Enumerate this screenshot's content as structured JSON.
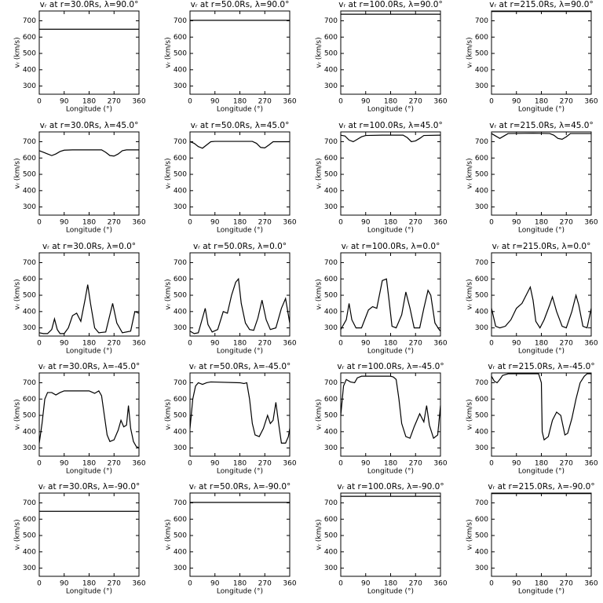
{
  "chart_data": [
    {
      "type": "line",
      "title": "vᵣ at r=30.0Rs, λ=90.0°",
      "xlabel": "Longitude (°)",
      "ylabel": "vᵣ (km/s)",
      "x": [
        0,
        360
      ],
      "values": [
        648,
        648
      ],
      "xlim": [
        0,
        360
      ],
      "ylim": [
        250,
        760
      ],
      "xticks": [
        0,
        90,
        180,
        270,
        360
      ],
      "yticks": [
        300,
        400,
        500,
        600,
        700
      ],
      "color": "#000000"
    },
    {
      "type": "line",
      "title": "vᵣ at r=50.0Rs, λ=90.0°",
      "xlabel": "Longitude (°)",
      "ylabel": "vᵣ (km/s)",
      "x": [
        0,
        360
      ],
      "values": [
        703,
        703
      ],
      "xlim": [
        0,
        360
      ],
      "ylim": [
        250,
        760
      ],
      "xticks": [
        0,
        90,
        180,
        270,
        360
      ],
      "yticks": [
        300,
        400,
        500,
        600,
        700
      ],
      "color": "#000000"
    },
    {
      "type": "line",
      "title": "vᵣ at r=100.0Rs, λ=90.0°",
      "xlabel": "Longitude (°)",
      "ylabel": "vᵣ (km/s)",
      "x": [
        0,
        360
      ],
      "values": [
        740,
        740
      ],
      "xlim": [
        0,
        360
      ],
      "ylim": [
        250,
        760
      ],
      "xticks": [
        0,
        90,
        180,
        270,
        360
      ],
      "yticks": [
        300,
        400,
        500,
        600,
        700
      ],
      "color": "#000000"
    },
    {
      "type": "line",
      "title": "vᵣ at r=215.0Rs, λ=90.0°",
      "xlabel": "Longitude (°)",
      "ylabel": "vᵣ (km/s)",
      "x": [
        0,
        360
      ],
      "values": [
        757,
        757
      ],
      "xlim": [
        0,
        360
      ],
      "ylim": [
        250,
        760
      ],
      "xticks": [
        0,
        90,
        180,
        270,
        360
      ],
      "yticks": [
        300,
        400,
        500,
        600,
        700
      ],
      "color": "#000000"
    },
    {
      "type": "line",
      "title": "vᵣ at r=30.0Rs, λ=45.0°",
      "xlabel": "Longitude (°)",
      "ylabel": "vᵣ (km/s)",
      "x": [
        0,
        15,
        30,
        45,
        60,
        75,
        90,
        120,
        150,
        180,
        210,
        225,
        240,
        255,
        270,
        285,
        300,
        315,
        330,
        360
      ],
      "values": [
        645,
        635,
        625,
        615,
        625,
        640,
        648,
        650,
        650,
        650,
        650,
        650,
        635,
        615,
        612,
        625,
        645,
        650,
        650,
        650
      ],
      "xlim": [
        0,
        360
      ],
      "ylim": [
        250,
        760
      ],
      "xticks": [
        0,
        90,
        180,
        270,
        360
      ],
      "yticks": [
        300,
        400,
        500,
        600,
        700
      ],
      "color": "#000000"
    },
    {
      "type": "line",
      "title": "vᵣ at r=50.0Rs, λ=45.0°",
      "xlabel": "Longitude (°)",
      "ylabel": "vᵣ (km/s)",
      "x": [
        0,
        15,
        30,
        45,
        60,
        75,
        90,
        150,
        225,
        240,
        255,
        270,
        285,
        300,
        360
      ],
      "values": [
        700,
        690,
        670,
        660,
        680,
        700,
        702,
        702,
        702,
        690,
        665,
        662,
        680,
        700,
        700
      ],
      "xlim": [
        0,
        360
      ],
      "ylim": [
        250,
        760
      ],
      "xticks": [
        0,
        90,
        180,
        270,
        360
      ],
      "yticks": [
        300,
        400,
        500,
        600,
        700
      ],
      "color": "#000000"
    },
    {
      "type": "line",
      "title": "vᵣ at r=100.0Rs, λ=45.0°",
      "xlabel": "Longitude (°)",
      "ylabel": "vᵣ (km/s)",
      "x": [
        0,
        15,
        30,
        45,
        60,
        75,
        90,
        150,
        225,
        240,
        255,
        270,
        285,
        300,
        360
      ],
      "values": [
        740,
        735,
        710,
        700,
        715,
        730,
        738,
        740,
        740,
        725,
        700,
        705,
        720,
        738,
        740
      ],
      "xlim": [
        0,
        360
      ],
      "ylim": [
        250,
        760
      ],
      "xticks": [
        0,
        90,
        180,
        270,
        360
      ],
      "yticks": [
        300,
        400,
        500,
        600,
        700
      ],
      "color": "#000000"
    },
    {
      "type": "line",
      "title": "vᵣ at r=215.0Rs, λ=45.0°",
      "xlabel": "Longitude (°)",
      "ylabel": "vᵣ (km/s)",
      "x": [
        0,
        15,
        30,
        45,
        60,
        150,
        210,
        225,
        240,
        255,
        270,
        285,
        360
      ],
      "values": [
        750,
        735,
        720,
        735,
        750,
        752,
        750,
        740,
        720,
        715,
        730,
        750,
        750
      ],
      "xlim": [
        0,
        360
      ],
      "ylim": [
        250,
        760
      ],
      "xticks": [
        0,
        90,
        180,
        270,
        360
      ],
      "yticks": [
        300,
        400,
        500,
        600,
        700
      ],
      "color": "#000000"
    },
    {
      "type": "line",
      "title": "vᵣ at r=30.0Rs, λ=0.0°",
      "xlabel": "Longitude (°)",
      "ylabel": "vᵣ (km/s)",
      "x": [
        0,
        15,
        30,
        45,
        55,
        65,
        75,
        90,
        105,
        120,
        135,
        150,
        165,
        175,
        185,
        200,
        215,
        240,
        255,
        265,
        280,
        300,
        330,
        345,
        360
      ],
      "values": [
        270,
        265,
        265,
        290,
        355,
        290,
        265,
        265,
        300,
        375,
        390,
        340,
        470,
        565,
        450,
        300,
        270,
        275,
        380,
        450,
        330,
        270,
        280,
        400,
        390
      ],
      "xlim": [
        0,
        360
      ],
      "ylim": [
        250,
        760
      ],
      "xticks": [
        0,
        90,
        180,
        270,
        360
      ],
      "yticks": [
        300,
        400,
        500,
        600,
        700
      ],
      "color": "#000000"
    },
    {
      "type": "line",
      "title": "vᵣ at r=50.0Rs, λ=0.0°",
      "xlabel": "Longitude (°)",
      "ylabel": "vᵣ (km/s)",
      "x": [
        0,
        15,
        30,
        45,
        55,
        65,
        80,
        100,
        120,
        135,
        150,
        165,
        175,
        185,
        200,
        215,
        230,
        245,
        260,
        275,
        290,
        310,
        330,
        345,
        360
      ],
      "values": [
        280,
        265,
        270,
        360,
        420,
        320,
        275,
        290,
        400,
        390,
        500,
        580,
        600,
        450,
        330,
        290,
        285,
        360,
        470,
        350,
        290,
        300,
        420,
        480,
        330
      ],
      "xlim": [
        0,
        360
      ],
      "ylim": [
        250,
        760
      ],
      "xticks": [
        0,
        90,
        180,
        270,
        360
      ],
      "yticks": [
        300,
        400,
        500,
        600,
        700
      ],
      "color": "#000000"
    },
    {
      "type": "line",
      "title": "vᵣ at r=100.0Rs, λ=0.0°",
      "xlabel": "Longitude (°)",
      "ylabel": "vᵣ (km/s)",
      "x": [
        0,
        20,
        30,
        40,
        55,
        75,
        100,
        115,
        130,
        150,
        165,
        175,
        185,
        200,
        220,
        235,
        250,
        265,
        285,
        300,
        315,
        325,
        340,
        355,
        360
      ],
      "values": [
        290,
        350,
        450,
        350,
        300,
        300,
        410,
        430,
        420,
        590,
        600,
        460,
        310,
        300,
        380,
        520,
        420,
        300,
        300,
        420,
        530,
        500,
        330,
        290,
        280
      ],
      "xlim": [
        0,
        360
      ],
      "ylim": [
        250,
        760
      ],
      "xticks": [
        0,
        90,
        180,
        270,
        360
      ],
      "yticks": [
        300,
        400,
        500,
        600,
        700
      ],
      "color": "#000000"
    },
    {
      "type": "line",
      "title": "vᵣ at r=215.0Rs, λ=0.0°",
      "xlabel": "Longitude (°)",
      "ylabel": "vᵣ (km/s)",
      "x": [
        0,
        15,
        30,
        50,
        70,
        90,
        110,
        125,
        140,
        150,
        160,
        175,
        190,
        210,
        220,
        235,
        255,
        270,
        290,
        305,
        315,
        330,
        345,
        360
      ],
      "values": [
        420,
        310,
        300,
        310,
        350,
        420,
        450,
        500,
        550,
        470,
        340,
        300,
        350,
        440,
        490,
        400,
        310,
        300,
        400,
        500,
        440,
        310,
        300,
        420
      ],
      "xlim": [
        0,
        360
      ],
      "ylim": [
        250,
        760
      ],
      "xticks": [
        0,
        90,
        180,
        270,
        360
      ],
      "yticks": [
        300,
        400,
        500,
        600,
        700
      ],
      "color": "#000000"
    },
    {
      "type": "line",
      "title": "vᵣ at r=30.0Rs, λ=-45.0°",
      "xlabel": "Longitude (°)",
      "ylabel": "vᵣ (km/s)",
      "x": [
        0,
        10,
        20,
        30,
        45,
        60,
        75,
        90,
        150,
        180,
        200,
        215,
        225,
        235,
        245,
        255,
        270,
        285,
        295,
        305,
        315,
        322,
        330,
        340,
        350,
        360
      ],
      "values": [
        330,
        450,
        600,
        640,
        640,
        625,
        640,
        650,
        650,
        650,
        635,
        650,
        620,
        500,
        380,
        340,
        350,
        410,
        470,
        430,
        440,
        560,
        420,
        340,
        310,
        300
      ],
      "xlim": [
        0,
        360
      ],
      "ylim": [
        250,
        760
      ],
      "xticks": [
        0,
        90,
        180,
        270,
        360
      ],
      "yticks": [
        300,
        400,
        500,
        600,
        700
      ],
      "color": "#000000"
    },
    {
      "type": "line",
      "title": "vᵣ at r=50.0Rs, λ=-45.0°",
      "xlabel": "Longitude (°)",
      "ylabel": "vᵣ (km/s)",
      "x": [
        0,
        10,
        20,
        30,
        45,
        60,
        75,
        180,
        195,
        205,
        215,
        225,
        235,
        250,
        265,
        280,
        290,
        300,
        310,
        320,
        330,
        345,
        355,
        360
      ],
      "values": [
        420,
        600,
        680,
        700,
        690,
        700,
        705,
        700,
        695,
        700,
        600,
        450,
        380,
        370,
        420,
        500,
        450,
        470,
        580,
        450,
        330,
        330,
        370,
        420
      ],
      "xlim": [
        0,
        360
      ],
      "ylim": [
        250,
        760
      ],
      "xticks": [
        0,
        90,
        180,
        270,
        360
      ],
      "yticks": [
        300,
        400,
        500,
        600,
        700
      ],
      "color": "#000000"
    },
    {
      "type": "line",
      "title": "vᵣ at r=100.0Rs, λ=-45.0°",
      "xlabel": "Longitude (°)",
      "ylabel": "vᵣ (km/s)",
      "x": [
        0,
        10,
        20,
        35,
        50,
        60,
        75,
        180,
        190,
        200,
        210,
        220,
        235,
        250,
        265,
        285,
        300,
        310,
        320,
        335,
        350,
        360
      ],
      "values": [
        500,
        680,
        720,
        705,
        700,
        730,
        740,
        740,
        735,
        720,
        600,
        450,
        370,
        360,
        430,
        510,
        460,
        560,
        440,
        360,
        380,
        560
      ],
      "xlim": [
        0,
        360
      ],
      "ylim": [
        250,
        760
      ],
      "xticks": [
        0,
        90,
        180,
        270,
        360
      ],
      "yticks": [
        300,
        400,
        500,
        600,
        700
      ],
      "color": "#000000"
    },
    {
      "type": "line",
      "title": "vᵣ at r=215.0Rs, λ=-45.0°",
      "xlabel": "Longitude (°)",
      "ylabel": "vᵣ (km/s)",
      "x": [
        0,
        10,
        20,
        30,
        40,
        60,
        170,
        180,
        183,
        190,
        205,
        220,
        235,
        250,
        260,
        265,
        275,
        290,
        305,
        320,
        335,
        345,
        360
      ],
      "values": [
        740,
        710,
        700,
        720,
        745,
        755,
        755,
        700,
        400,
        350,
        370,
        470,
        520,
        500,
        420,
        380,
        390,
        480,
        600,
        700,
        740,
        755,
        755
      ],
      "xlim": [
        0,
        360
      ],
      "ylim": [
        250,
        760
      ],
      "xticks": [
        0,
        90,
        180,
        270,
        360
      ],
      "yticks": [
        300,
        400,
        500,
        600,
        700
      ],
      "color": "#000000"
    },
    {
      "type": "line",
      "title": "vᵣ at r=30.0Rs, λ=-90.0°",
      "xlabel": "Longitude (°)",
      "ylabel": "vᵣ (km/s)",
      "x": [
        0,
        360
      ],
      "values": [
        648,
        648
      ],
      "xlim": [
        0,
        360
      ],
      "ylim": [
        250,
        760
      ],
      "xticks": [
        0,
        90,
        180,
        270,
        360
      ],
      "yticks": [
        300,
        400,
        500,
        600,
        700
      ],
      "color": "#000000"
    },
    {
      "type": "line",
      "title": "vᵣ at r=50.0Rs, λ=-90.0°",
      "xlabel": "Longitude (°)",
      "ylabel": "vᵣ (km/s)",
      "x": [
        0,
        360
      ],
      "values": [
        703,
        703
      ],
      "xlim": [
        0,
        360
      ],
      "ylim": [
        250,
        760
      ],
      "xticks": [
        0,
        90,
        180,
        270,
        360
      ],
      "yticks": [
        300,
        400,
        500,
        600,
        700
      ],
      "color": "#000000"
    },
    {
      "type": "line",
      "title": "vᵣ at r=100.0Rs, λ=-90.0°",
      "xlabel": "Longitude (°)",
      "ylabel": "vᵣ (km/s)",
      "x": [
        0,
        360
      ],
      "values": [
        740,
        740
      ],
      "xlim": [
        0,
        360
      ],
      "ylim": [
        250,
        760
      ],
      "xticks": [
        0,
        90,
        180,
        270,
        360
      ],
      "yticks": [
        300,
        400,
        500,
        600,
        700
      ],
      "color": "#000000"
    },
    {
      "type": "line",
      "title": "vᵣ at r=215.0Rs, λ=-90.0°",
      "xlabel": "Longitude (°)",
      "ylabel": "vᵣ (km/s)",
      "x": [
        0,
        360
      ],
      "values": [
        757,
        757
      ],
      "xlim": [
        0,
        360
      ],
      "ylim": [
        250,
        760
      ],
      "xticks": [
        0,
        90,
        180,
        270,
        360
      ],
      "yticks": [
        300,
        400,
        500,
        600,
        700
      ],
      "color": "#000000"
    }
  ]
}
